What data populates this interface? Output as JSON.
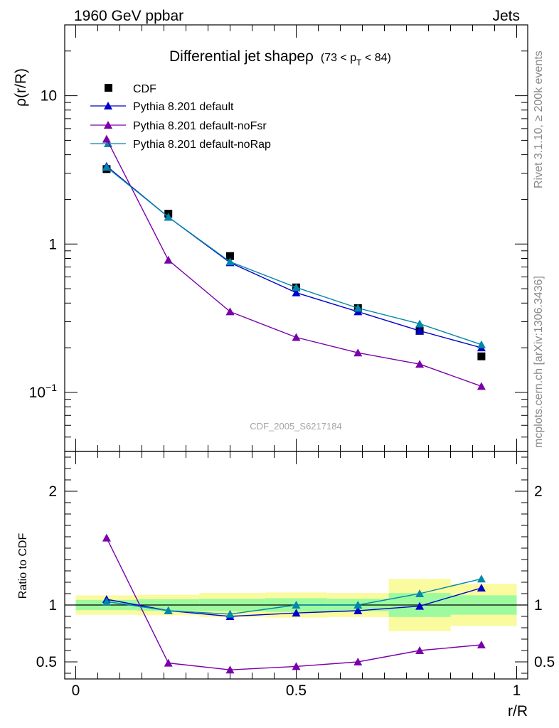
{
  "header": {
    "left": "1960 GeV ppbar",
    "right": "Jets"
  },
  "side": {
    "rivet": "Rivet 3.1.10, ≥ 200k events",
    "mcplots": "mcplots.cern.ch [arXiv:1306.3436]"
  },
  "chart_data": [
    {
      "type": "scatter",
      "panel": "main",
      "title": "Differential jet shapeρ",
      "subtitle": "(73 < p_T < 84)",
      "title_parts": {
        "prefix": "(73 < p",
        "sub": "T",
        "suffix": " < 84)"
      },
      "watermark": "CDF_2005_S6217184",
      "xlabel": "r/R",
      "ylabel": "ρ(r/R)",
      "yscale": "log",
      "xlim": [
        -0.025,
        1.025
      ],
      "ylim": [
        0.04,
        30
      ],
      "yticks": [
        {
          "value": 10,
          "label": "10"
        },
        {
          "value": 1,
          "label": "1"
        },
        {
          "value": 0.1,
          "label": "10",
          "sup": "−1"
        }
      ],
      "x": [
        0.07,
        0.21,
        0.35,
        0.5,
        0.64,
        0.78,
        0.92
      ],
      "series": [
        {
          "name": "CDF",
          "color": "#000000",
          "marker": "square",
          "line": false,
          "values": [
            3.2,
            1.6,
            0.83,
            0.51,
            0.37,
            0.26,
            0.175
          ]
        },
        {
          "name": "Pythia 8.201 default",
          "color": "#0000cc",
          "marker": "triangle",
          "line": true,
          "values": [
            3.35,
            1.52,
            0.75,
            0.47,
            0.35,
            0.26,
            0.2
          ]
        },
        {
          "name": "Pythia 8.201 default-noFsr",
          "color": "#7a00aa",
          "marker": "triangle",
          "line": true,
          "values": [
            5.1,
            0.78,
            0.35,
            0.235,
            0.185,
            0.155,
            0.11
          ]
        },
        {
          "name": "Pythia 8.201 default-noRap",
          "color": "#0088aa",
          "marker": "triangle",
          "line": true,
          "values": [
            3.3,
            1.52,
            0.76,
            0.51,
            0.37,
            0.29,
            0.21
          ]
        }
      ]
    },
    {
      "type": "scatter",
      "panel": "ratio",
      "xlabel": "r/R",
      "ylabel": "Ratio to CDF",
      "xlim": [
        -0.025,
        1.025
      ],
      "ylim": [
        0.35,
        2.35
      ],
      "yticks": [
        {
          "value": 2,
          "label": "2"
        },
        {
          "value": 1,
          "label": "1"
        },
        {
          "value": 0.5,
          "label": "0.5"
        }
      ],
      "xticks": [
        {
          "value": 0,
          "label": "0"
        },
        {
          "value": 0.5,
          "label": "0.5"
        },
        {
          "value": 1,
          "label": "1"
        }
      ],
      "reference_line": 1,
      "bands": [
        {
          "x0": 0.0,
          "x1": 0.14,
          "inner": [
            0.955,
            1.045
          ],
          "outer": [
            0.915,
            1.085
          ]
        },
        {
          "x0": 0.14,
          "x1": 0.28,
          "inner": [
            0.95,
            1.05
          ],
          "outer": [
            0.91,
            1.09
          ]
        },
        {
          "x0": 0.28,
          "x1": 0.43,
          "inner": [
            0.945,
            1.055
          ],
          "outer": [
            0.895,
            1.105
          ]
        },
        {
          "x0": 0.43,
          "x1": 0.57,
          "inner": [
            0.94,
            1.06
          ],
          "outer": [
            0.89,
            1.11
          ]
        },
        {
          "x0": 0.57,
          "x1": 0.71,
          "inner": [
            0.945,
            1.055
          ],
          "outer": [
            0.895,
            1.105
          ]
        },
        {
          "x0": 0.71,
          "x1": 0.85,
          "inner": [
            0.895,
            1.105
          ],
          "outer": [
            0.77,
            1.23
          ]
        },
        {
          "x0": 0.85,
          "x1": 1.0,
          "inner": [
            0.915,
            1.085
          ],
          "outer": [
            0.815,
            1.185
          ]
        }
      ],
      "band_colors": {
        "inner": "#9efa9e",
        "outer": "#fafa9e"
      },
      "x": [
        0.07,
        0.21,
        0.35,
        0.5,
        0.64,
        0.78,
        0.92
      ],
      "series": [
        {
          "name": "Pythia 8.201 default",
          "color": "#0000cc",
          "values": [
            1.05,
            0.95,
            0.9,
            0.93,
            0.95,
            0.99,
            1.15
          ],
          "err": [
            0,
            0,
            0,
            0,
            0,
            0,
            0
          ]
        },
        {
          "name": "Pythia 8.201 default-noFsr",
          "color": "#7a00aa",
          "values": [
            1.59,
            0.49,
            0.43,
            0.46,
            0.5,
            0.6,
            0.65
          ],
          "err": [
            0,
            0,
            0,
            0.015,
            0.015,
            0.02,
            0.02
          ]
        },
        {
          "name": "Pythia 8.201 default-noRap",
          "color": "#0088aa",
          "values": [
            1.03,
            0.95,
            0.92,
            1.0,
            1.0,
            1.1,
            1.23
          ],
          "err": [
            0,
            0,
            0,
            0,
            0,
            0,
            0
          ]
        }
      ]
    }
  ]
}
